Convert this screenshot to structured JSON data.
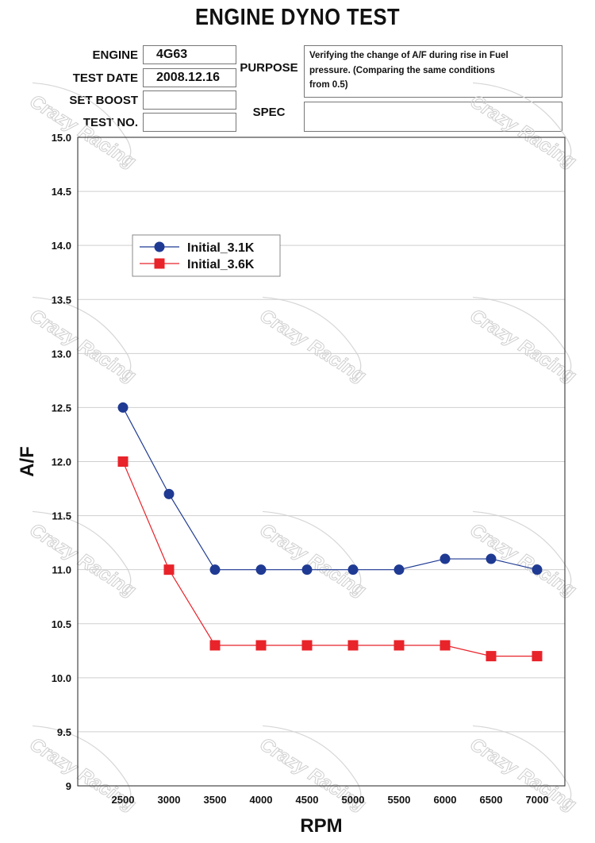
{
  "header": {
    "title": "ENGINE DYNO TEST",
    "engine_label": "ENGINE",
    "engine_value": "4G63",
    "test_date_label": "TEST DATE",
    "test_date_value": "2008.12.16",
    "set_boost_label": "SET BOOST",
    "set_boost_value": "",
    "test_no_label": "TEST NO.",
    "test_no_value": "",
    "purpose_label": "PURPOSE",
    "purpose_lines": [
      "Verifying the change of A/F during rise in Fuel",
      "pressure. (Comparing the same conditions",
      "from 0.5)"
    ],
    "spec_label": "SPEC",
    "spec_value": ""
  },
  "watermark_text": "Crazy Racing",
  "chart_data": {
    "type": "line",
    "title": "ENGINE DYNO TEST",
    "xlabel": "RPM",
    "ylabel": "A/F",
    "categories": [
      2500,
      3000,
      3500,
      4000,
      4500,
      5000,
      5500,
      6000,
      6500,
      7000
    ],
    "x_tick_labels": [
      "2500",
      "3000",
      "3500",
      "4000",
      "4500",
      "5000",
      "5500",
      "6000",
      "6500",
      "7000"
    ],
    "y_tick_labels": [
      "9",
      "9.5",
      "10.0",
      "10.5",
      "11.0",
      "11.5",
      "12.0",
      "12.5",
      "13.0",
      "13.5",
      "14.0",
      "14.5",
      "15.0"
    ],
    "y_ticks": [
      9,
      9.5,
      10,
      10.5,
      11,
      11.5,
      12,
      12.5,
      13,
      13.5,
      14,
      14.5,
      15
    ],
    "ylim": [
      9,
      15
    ],
    "grid": "horizontal",
    "legend_position": "top-left",
    "series": [
      {
        "name": "Initial_3.1K",
        "marker": "circle",
        "color": "#1f3a93",
        "values": [
          12.5,
          11.7,
          11.0,
          11.0,
          11.0,
          11.0,
          11.0,
          11.1,
          11.1,
          11.0
        ]
      },
      {
        "name": "Initial_3.6K",
        "marker": "square",
        "color": "#e8232a",
        "values": [
          12.0,
          11.0,
          10.3,
          10.3,
          10.3,
          10.3,
          10.3,
          10.3,
          10.2,
          10.2
        ]
      }
    ]
  }
}
